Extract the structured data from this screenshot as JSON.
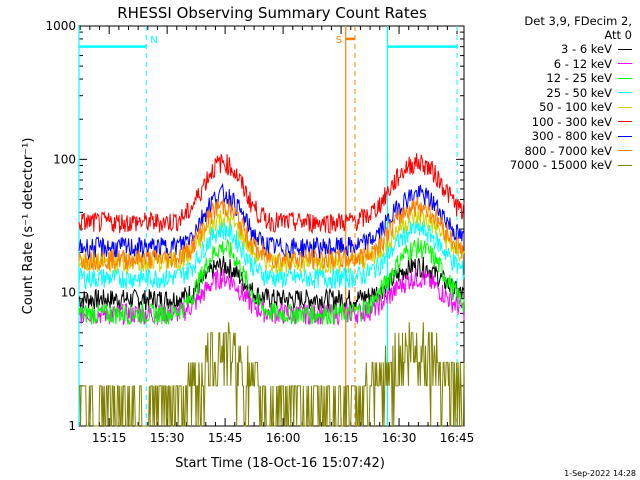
{
  "chart_data": {
    "type": "line",
    "title": "RHESSI Observing Summary Count Rates",
    "xlabel": "Start Time (18-Oct-16 15:07:42)",
    "ylabel": "Count Rate (s⁻¹ detector⁻¹)",
    "yscale": "log",
    "ylim": [
      1,
      1000
    ],
    "xlim_minutes": [
      15.12,
      16.78
    ],
    "x_tick_labels": [
      "15:15",
      "15:30",
      "15:45",
      "16:00",
      "16:15",
      "16:30",
      "16:45"
    ],
    "x_tick_minutes": [
      15.25,
      15.5,
      15.75,
      16.0,
      16.25,
      16.5,
      16.75
    ],
    "y_tick_labels": [
      "1",
      "10",
      "100",
      "1000"
    ],
    "y_tick_values": [
      1,
      10,
      100,
      1000
    ],
    "legend_header": [
      "Det 3,9, FDecim 2,",
      "Att 0"
    ],
    "legend_position": "right",
    "series": [
      {
        "name": "3 - 6 keV",
        "color": "#000000",
        "baseline": 9,
        "peak": 16
      },
      {
        "name": "6 - 12 keV",
        "color": "#ff00ff",
        "baseline": 7,
        "peak": 13
      },
      {
        "name": "12 - 25 keV",
        "color": "#00ff00",
        "baseline": 7,
        "peak": 22
      },
      {
        "name": "25 - 50 keV",
        "color": "#00ffff",
        "baseline": 13,
        "peak": 30
      },
      {
        "name": "50 - 100 keV",
        "color": "#d4d400",
        "baseline": 17,
        "peak": 37
      },
      {
        "name": "100 - 300 keV",
        "color": "#ff0000",
        "baseline": 34,
        "peak": 95
      },
      {
        "name": "300 - 800 keV",
        "color": "#0000ff",
        "baseline": 22,
        "peak": 55
      },
      {
        "name": "800 - 7000 keV",
        "color": "#ff7f00",
        "baseline": 18,
        "peak": 45
      },
      {
        "name": "7000 - 15000 keV",
        "color": "#808000",
        "baseline": 1.5,
        "peak": 4
      }
    ],
    "annotations": [
      {
        "label": "N",
        "color": "#00ffff",
        "kind": "night",
        "start": 15.12,
        "end": 15.41
      },
      {
        "label": "",
        "color": "#00ffff",
        "kind": "night",
        "start": 16.45,
        "end": 16.75
      },
      {
        "label": "S",
        "color": "#ff7f00",
        "kind": "saa",
        "start": 16.27,
        "end": 16.31
      }
    ],
    "footer": "1-Sep-2022 14:28"
  }
}
